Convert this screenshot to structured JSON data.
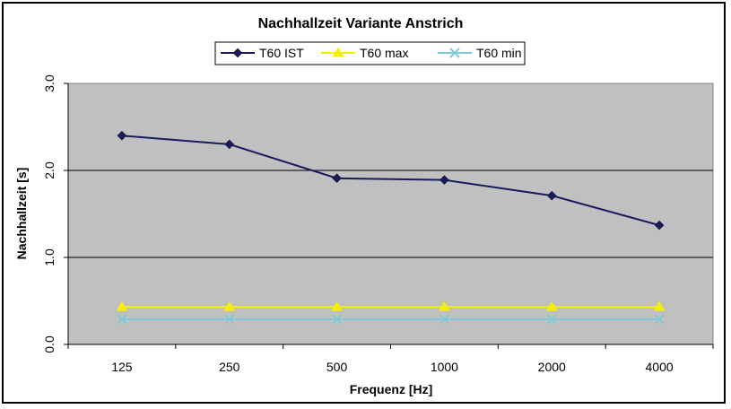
{
  "chart_data": {
    "type": "line",
    "title": "Nachhallzeit Variante Anstrich",
    "xlabel": "Frequenz [Hz]",
    "ylabel": "Nachhallzeit [s]",
    "categories": [
      "125",
      "250",
      "500",
      "1000",
      "2000",
      "4000"
    ],
    "ylim": [
      0,
      3
    ],
    "yticks": [
      "0.0",
      "1.0",
      "2.0",
      "3.0"
    ],
    "grid": true,
    "legend": "top",
    "plot_background": "#c0c0c0",
    "series": [
      {
        "name": "T60 IST",
        "values": [
          2.4,
          2.3,
          1.91,
          1.89,
          1.71,
          1.37
        ],
        "color": "#1a1a5e",
        "marker": "diamond"
      },
      {
        "name": "T60 max",
        "values": [
          0.43,
          0.43,
          0.43,
          0.43,
          0.43,
          0.43
        ],
        "color": "#f5f000",
        "marker": "triangle"
      },
      {
        "name": "T60 min",
        "values": [
          0.29,
          0.29,
          0.29,
          0.29,
          0.29,
          0.29
        ],
        "color": "#7ec8d8",
        "marker": "x"
      }
    ]
  }
}
